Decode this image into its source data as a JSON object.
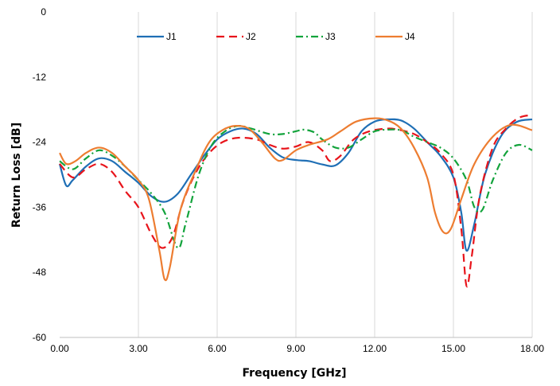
{
  "chart_data": {
    "type": "line",
    "xlabel": "Frequency [GHz]",
    "ylabel": "Return Loss [dB]",
    "xlim": [
      0,
      18
    ],
    "ylim": [
      -60,
      0
    ],
    "xticks": [
      "0.00",
      "3.00",
      "6.00",
      "9.00",
      "12.00",
      "15.00",
      "18.00"
    ],
    "yticks": [
      "0",
      "-12",
      "-24",
      "-36",
      "-48",
      "-60"
    ],
    "grid": "vertical",
    "legend": "top",
    "series": [
      {
        "name": "J1",
        "color": "#1f6fb5",
        "dash": "solid",
        "points": [
          [
            0,
            -28
          ],
          [
            0.25,
            -32
          ],
          [
            0.5,
            -31
          ],
          [
            1,
            -28.5
          ],
          [
            1.5,
            -27
          ],
          [
            2,
            -27.5
          ],
          [
            2.5,
            -29.5
          ],
          [
            3,
            -31.5
          ],
          [
            3.5,
            -34
          ],
          [
            4,
            -35
          ],
          [
            4.5,
            -33.5
          ],
          [
            5,
            -30
          ],
          [
            5.5,
            -26.5
          ],
          [
            6,
            -23.5
          ],
          [
            6.5,
            -22
          ],
          [
            7,
            -21.5
          ],
          [
            7.5,
            -22.5
          ],
          [
            8,
            -25
          ],
          [
            8.5,
            -26.8
          ],
          [
            9,
            -27.3
          ],
          [
            9.5,
            -27.5
          ],
          [
            10,
            -28.1
          ],
          [
            10.5,
            -28.3
          ],
          [
            11,
            -26
          ],
          [
            11.5,
            -22
          ],
          [
            12,
            -20.2
          ],
          [
            12.5,
            -19.8
          ],
          [
            13,
            -20
          ],
          [
            13.5,
            -21.5
          ],
          [
            14,
            -24
          ],
          [
            14.5,
            -26.5
          ],
          [
            15,
            -30.5
          ],
          [
            15.3,
            -37
          ],
          [
            15.5,
            -44
          ],
          [
            15.8,
            -39
          ],
          [
            16.2,
            -30
          ],
          [
            16.8,
            -23
          ],
          [
            17.4,
            -20.3
          ],
          [
            18,
            -19.8
          ]
        ]
      },
      {
        "name": "J2",
        "color": "#e8141b",
        "dash": "10,6",
        "points": [
          [
            0,
            -28
          ],
          [
            0.5,
            -30.5
          ],
          [
            1,
            -29
          ],
          [
            1.5,
            -28
          ],
          [
            2,
            -29.5
          ],
          [
            2.5,
            -33
          ],
          [
            3,
            -36
          ],
          [
            3.5,
            -41
          ],
          [
            3.9,
            -43.5
          ],
          [
            4.3,
            -41.5
          ],
          [
            4.7,
            -35
          ],
          [
            5.2,
            -29.5
          ],
          [
            5.7,
            -26
          ],
          [
            6.2,
            -24
          ],
          [
            6.8,
            -23.2
          ],
          [
            7.5,
            -23.5
          ],
          [
            8,
            -24.5
          ],
          [
            8.5,
            -25.2
          ],
          [
            9,
            -24.8
          ],
          [
            9.5,
            -24
          ],
          [
            10,
            -25.5
          ],
          [
            10.3,
            -27.5
          ],
          [
            10.7,
            -26.5
          ],
          [
            11.2,
            -23.5
          ],
          [
            11.8,
            -22
          ],
          [
            12.5,
            -21.5
          ],
          [
            13,
            -21.8
          ],
          [
            13.5,
            -22.5
          ],
          [
            14,
            -24
          ],
          [
            14.5,
            -26
          ],
          [
            15,
            -30
          ],
          [
            15.3,
            -40
          ],
          [
            15.5,
            -50.5
          ],
          [
            15.7,
            -45
          ],
          [
            16,
            -34
          ],
          [
            16.5,
            -25
          ],
          [
            17,
            -21.5
          ],
          [
            17.5,
            -19.5
          ],
          [
            18,
            -19
          ]
        ]
      },
      {
        "name": "J3",
        "color": "#13a33c",
        "dash": "9,4,2,4",
        "points": [
          [
            0,
            -27.5
          ],
          [
            0.5,
            -29
          ],
          [
            1,
            -27
          ],
          [
            1.5,
            -25.5
          ],
          [
            2,
            -26.5
          ],
          [
            2.5,
            -28.5
          ],
          [
            3,
            -31
          ],
          [
            3.5,
            -33.5
          ],
          [
            4,
            -37
          ],
          [
            4.5,
            -43.5
          ],
          [
            4.8,
            -39
          ],
          [
            5.3,
            -30
          ],
          [
            5.8,
            -24.5
          ],
          [
            6.3,
            -22
          ],
          [
            6.8,
            -21
          ],
          [
            7.3,
            -21.5
          ],
          [
            8,
            -22.5
          ],
          [
            8.5,
            -22.5
          ],
          [
            9,
            -22
          ],
          [
            9.3,
            -21.7
          ],
          [
            9.7,
            -22.2
          ],
          [
            10,
            -23.5
          ],
          [
            10.5,
            -25
          ],
          [
            11,
            -25
          ],
          [
            11.5,
            -23.5
          ],
          [
            12,
            -22
          ],
          [
            12.5,
            -21.7
          ],
          [
            13,
            -21.8
          ],
          [
            13.5,
            -23
          ],
          [
            14,
            -24
          ],
          [
            14.5,
            -25
          ],
          [
            15,
            -27
          ],
          [
            15.5,
            -31
          ],
          [
            15.8,
            -36
          ],
          [
            16.1,
            -36.5
          ],
          [
            16.5,
            -31
          ],
          [
            17,
            -26
          ],
          [
            17.5,
            -24.5
          ],
          [
            18,
            -25.5
          ]
        ]
      },
      {
        "name": "J4",
        "color": "#ed7d31",
        "dash": "solid",
        "points": [
          [
            0,
            -26
          ],
          [
            0.25,
            -28
          ],
          [
            0.6,
            -27.5
          ],
          [
            1,
            -26
          ],
          [
            1.5,
            -25
          ],
          [
            2,
            -26
          ],
          [
            2.5,
            -28.5
          ],
          [
            3,
            -31
          ],
          [
            3.4,
            -34.5
          ],
          [
            3.8,
            -44
          ],
          [
            4,
            -49.3
          ],
          [
            4.2,
            -47
          ],
          [
            4.6,
            -36.5
          ],
          [
            5.2,
            -29
          ],
          [
            5.7,
            -24
          ],
          [
            6.2,
            -21.8
          ],
          [
            6.7,
            -21
          ],
          [
            7.2,
            -21.5
          ],
          [
            7.7,
            -24
          ],
          [
            8.2,
            -27
          ],
          [
            8.5,
            -27.3
          ],
          [
            9,
            -25.5
          ],
          [
            9.5,
            -24.5
          ],
          [
            10.2,
            -23.5
          ],
          [
            10.7,
            -22
          ],
          [
            11.3,
            -20.2
          ],
          [
            12,
            -19.6
          ],
          [
            12.5,
            -20
          ],
          [
            13,
            -21.5
          ],
          [
            13.5,
            -25
          ],
          [
            14,
            -30.5
          ],
          [
            14.3,
            -37
          ],
          [
            14.6,
            -40.5
          ],
          [
            14.9,
            -40
          ],
          [
            15.3,
            -34.5
          ],
          [
            15.8,
            -28
          ],
          [
            16.5,
            -23
          ],
          [
            17.2,
            -20.8
          ],
          [
            18,
            -21.8
          ]
        ]
      }
    ]
  }
}
